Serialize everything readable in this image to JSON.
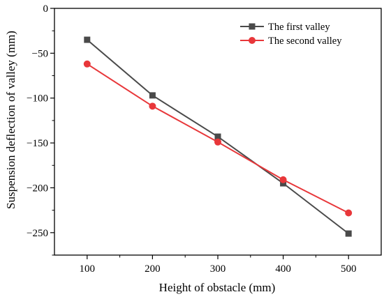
{
  "chart_data": {
    "type": "line",
    "xlabel": "Height of obstacle (mm)",
    "ylabel": "Suspension deflection of valley (mm)",
    "x": [
      100,
      200,
      300,
      400,
      500
    ],
    "xlim": [
      50,
      550
    ],
    "ylim": [
      -275,
      0
    ],
    "xticks": [
      100,
      200,
      300,
      400,
      500
    ],
    "yticks": [
      0,
      -50,
      -100,
      -150,
      -200,
      -250
    ],
    "x_tick_labels": [
      "100",
      "200",
      "300",
      "400",
      "500"
    ],
    "y_tick_labels": [
      "0",
      "−50",
      "−100",
      "−150",
      "−200",
      "−250"
    ],
    "grid": false,
    "legend_position": "top-right",
    "series": [
      {
        "name": "The first valley",
        "values": [
          -35,
          -97,
          -143,
          -195,
          -251
        ],
        "color": "#4a4a4a",
        "marker": "square"
      },
      {
        "name": "The second valley",
        "values": [
          -62,
          -109,
          -149,
          -191,
          -228
        ],
        "color": "#e8373a",
        "marker": "circle"
      }
    ]
  }
}
